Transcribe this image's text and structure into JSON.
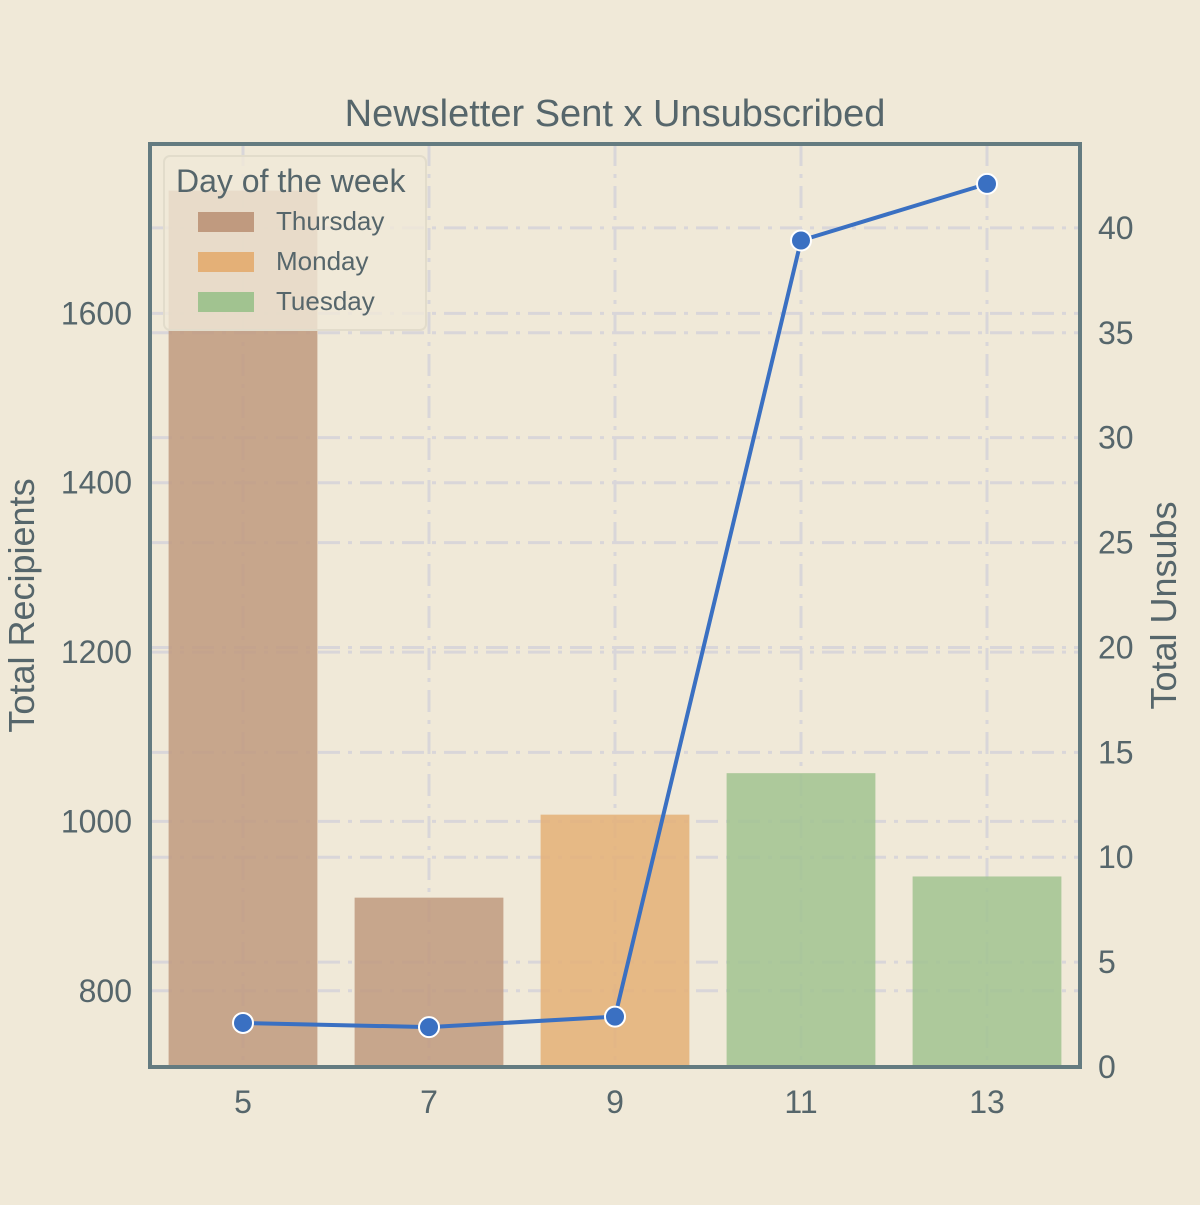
{
  "chart_data": {
    "type": "bar+line",
    "title": "Newsletter Sent x Unsubscribed",
    "xlabel": "",
    "ylabel_left": "Total Recipients",
    "ylabel_right": "Total Unsubs",
    "categories": [
      "5",
      "7",
      "9",
      "11",
      "13"
    ],
    "bars": {
      "name": "Total Recipients",
      "values": [
        1745,
        910,
        1008,
        1057,
        935
      ],
      "day_of_week": [
        "Thursday",
        "Thursday",
        "Monday",
        "Tuesday",
        "Tuesday"
      ]
    },
    "line": {
      "name": "Total Unsubs",
      "values": [
        2.1,
        1.9,
        2.4,
        39.4,
        42.1
      ],
      "color": "#3a70c2"
    },
    "y_left": {
      "ylim": [
        710,
        1800
      ],
      "ticks": [
        800,
        1000,
        1200,
        1400,
        1600
      ]
    },
    "y_right": {
      "ylim": [
        0,
        44
      ],
      "ticks": [
        0,
        5,
        10,
        15,
        20,
        25,
        30,
        35,
        40
      ]
    },
    "legend": {
      "title": "Day of the week",
      "placement": "top-left",
      "entries": [
        {
          "label": "Thursday",
          "color": "#c09a7f"
        },
        {
          "label": "Monday",
          "color": "#e4b077"
        },
        {
          "label": "Tuesday",
          "color": "#a1c390"
        }
      ]
    },
    "grid": true,
    "colors": {
      "background": "#f0e9d8",
      "axis": "#647b80",
      "text": "#56666b",
      "grid": "#d9d6d9"
    }
  }
}
